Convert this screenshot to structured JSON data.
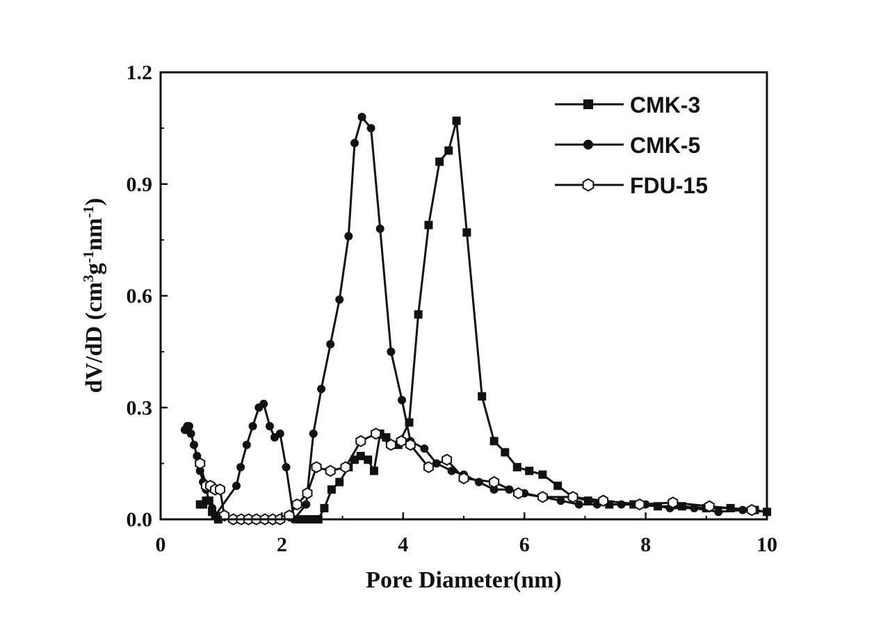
{
  "chart_data": {
    "type": "line",
    "title": "",
    "xlabel": "Pore Diameter(nm)",
    "ylabel": {
      "parts": [
        {
          "text": "dV/dD (cm",
          "sup": false
        },
        {
          "text": "3",
          "sup": true
        },
        {
          "text": "g",
          "sup": false
        },
        {
          "text": "-1",
          "sup": true
        },
        {
          "text": "nm",
          "sup": false
        },
        {
          "text": "-1",
          "sup": true
        },
        {
          "text": ")",
          "sup": false
        }
      ]
    },
    "xlim": [
      0,
      10
    ],
    "ylim": [
      0,
      1.2
    ],
    "xticks": [
      0,
      2,
      4,
      6,
      8,
      10
    ],
    "xtick_labels": [
      "0",
      "2",
      "4",
      "6",
      "8",
      "10"
    ],
    "yticks": [
      0.0,
      0.3,
      0.6,
      0.9,
      1.2
    ],
    "ytick_labels": [
      "0.0",
      "0.3",
      "0.6",
      "0.9",
      "1.2"
    ],
    "grid": false,
    "legend_position": "top-right",
    "series": [
      {
        "name": "CMK-3",
        "marker": "filled-square",
        "color": "#111111",
        "points": [
          [
            0.65,
            0.04
          ],
          [
            0.7,
            0.04
          ],
          [
            0.75,
            0.05
          ],
          [
            0.8,
            0.05
          ],
          [
            0.85,
            0.02
          ],
          [
            0.9,
            0.01
          ],
          [
            0.95,
            0.0
          ],
          [
            2.3,
            0.0
          ],
          [
            2.4,
            0.0
          ],
          [
            2.5,
            0.0
          ],
          [
            2.6,
            0.0
          ],
          [
            2.7,
            0.03
          ],
          [
            2.82,
            0.08
          ],
          [
            2.95,
            0.1
          ],
          [
            3.1,
            0.14
          ],
          [
            3.2,
            0.16
          ],
          [
            3.3,
            0.17
          ],
          [
            3.42,
            0.16
          ],
          [
            3.52,
            0.13
          ],
          [
            3.62,
            0.23
          ],
          [
            3.72,
            0.22
          ],
          [
            3.92,
            0.2
          ],
          [
            4.1,
            0.26
          ],
          [
            4.25,
            0.55
          ],
          [
            4.42,
            0.79
          ],
          [
            4.6,
            0.96
          ],
          [
            4.75,
            0.99
          ],
          [
            4.88,
            1.07
          ],
          [
            5.05,
            0.77
          ],
          [
            5.3,
            0.33
          ],
          [
            5.5,
            0.21
          ],
          [
            5.68,
            0.18
          ],
          [
            5.88,
            0.14
          ],
          [
            6.08,
            0.13
          ],
          [
            6.3,
            0.12
          ],
          [
            6.55,
            0.09
          ],
          [
            6.8,
            0.06
          ],
          [
            7.05,
            0.05
          ],
          [
            7.4,
            0.04
          ],
          [
            7.8,
            0.04
          ],
          [
            8.2,
            0.035
          ],
          [
            8.6,
            0.035
          ],
          [
            9.0,
            0.03
          ],
          [
            9.4,
            0.03
          ],
          [
            9.8,
            0.025
          ],
          [
            10.0,
            0.02
          ]
        ]
      },
      {
        "name": "CMK-5",
        "marker": "filled-circle",
        "color": "#111111",
        "points": [
          [
            0.4,
            0.24
          ],
          [
            0.44,
            0.25
          ],
          [
            0.47,
            0.25
          ],
          [
            0.5,
            0.23
          ],
          [
            0.55,
            0.2
          ],
          [
            0.6,
            0.17
          ],
          [
            0.65,
            0.13
          ],
          [
            0.7,
            0.1
          ],
          [
            0.75,
            0.08
          ],
          [
            0.8,
            0.05
          ],
          [
            0.85,
            0.03
          ],
          [
            0.9,
            0.01
          ],
          [
            1.25,
            0.09
          ],
          [
            1.32,
            0.14
          ],
          [
            1.42,
            0.2
          ],
          [
            1.52,
            0.25
          ],
          [
            1.62,
            0.3
          ],
          [
            1.7,
            0.31
          ],
          [
            1.8,
            0.25
          ],
          [
            1.88,
            0.22
          ],
          [
            1.97,
            0.23
          ],
          [
            2.07,
            0.14
          ],
          [
            2.2,
            0.0
          ],
          [
            2.4,
            0.04
          ],
          [
            2.52,
            0.23
          ],
          [
            2.65,
            0.35
          ],
          [
            2.8,
            0.47
          ],
          [
            2.95,
            0.59
          ],
          [
            3.1,
            0.76
          ],
          [
            3.2,
            1.01
          ],
          [
            3.32,
            1.08
          ],
          [
            3.47,
            1.05
          ],
          [
            3.62,
            0.78
          ],
          [
            3.8,
            0.45
          ],
          [
            3.98,
            0.32
          ],
          [
            4.12,
            0.21
          ],
          [
            4.35,
            0.19
          ],
          [
            4.55,
            0.15
          ],
          [
            4.8,
            0.13
          ],
          [
            5.0,
            0.12
          ],
          [
            5.25,
            0.1
          ],
          [
            5.5,
            0.08
          ],
          [
            5.75,
            0.08
          ],
          [
            6.0,
            0.07
          ],
          [
            6.3,
            0.06
          ],
          [
            6.6,
            0.05
          ],
          [
            6.9,
            0.04
          ],
          [
            7.2,
            0.04
          ],
          [
            7.6,
            0.04
          ],
          [
            8.0,
            0.04
          ],
          [
            8.4,
            0.03
          ],
          [
            8.8,
            0.03
          ],
          [
            9.2,
            0.02
          ],
          [
            9.6,
            0.025
          ],
          [
            10.0,
            0.02
          ]
        ]
      },
      {
        "name": "FDU-15",
        "marker": "open-hexagon",
        "color": "#111111",
        "points": [
          [
            0.65,
            0.15
          ],
          [
            0.75,
            0.09
          ],
          [
            0.82,
            0.09
          ],
          [
            0.9,
            0.08
          ],
          [
            0.98,
            0.08
          ],
          [
            1.05,
            0.01
          ],
          [
            1.2,
            0.0
          ],
          [
            1.33,
            0.0
          ],
          [
            1.45,
            0.0
          ],
          [
            1.58,
            0.0
          ],
          [
            1.72,
            0.0
          ],
          [
            1.85,
            0.0
          ],
          [
            1.97,
            0.0
          ],
          [
            2.12,
            0.01
          ],
          [
            2.25,
            0.04
          ],
          [
            2.42,
            0.07
          ],
          [
            2.57,
            0.14
          ],
          [
            2.8,
            0.13
          ],
          [
            3.05,
            0.14
          ],
          [
            3.3,
            0.21
          ],
          [
            3.55,
            0.23
          ],
          [
            3.8,
            0.2
          ],
          [
            3.97,
            0.21
          ],
          [
            4.12,
            0.2
          ],
          [
            4.42,
            0.14
          ],
          [
            4.72,
            0.16
          ],
          [
            5.0,
            0.11
          ],
          [
            5.5,
            0.1
          ],
          [
            5.9,
            0.07
          ],
          [
            6.3,
            0.06
          ],
          [
            6.8,
            0.06
          ],
          [
            7.3,
            0.05
          ],
          [
            7.9,
            0.04
          ],
          [
            8.45,
            0.045
          ],
          [
            9.05,
            0.035
          ],
          [
            9.75,
            0.025
          ]
        ]
      }
    ]
  }
}
